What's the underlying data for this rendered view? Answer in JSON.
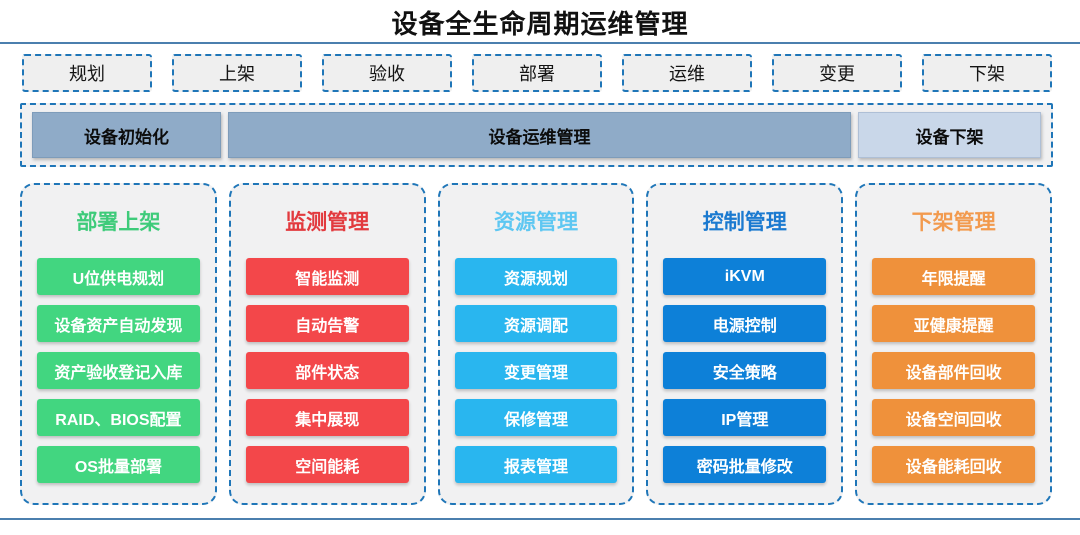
{
  "title": "设备全生命周期运维管理",
  "colors": {
    "dashed_border": "#1f76b8",
    "rule_line": "#4b7fae",
    "panel_bg": "#f1f1f2",
    "phase_dark": "#8fabc8",
    "phase_light": "#c9d7e9"
  },
  "stages": [
    "规划",
    "上架",
    "验收",
    "部署",
    "运维",
    "变更",
    "下架"
  ],
  "phase_bar": [
    {
      "label": "设备初始化"
    },
    {
      "label": "设备运维管理"
    },
    {
      "label": "设备下架"
    }
  ],
  "columns": [
    {
      "title": "部署上架",
      "title_color": "#3ecb7a",
      "color": "#42d680",
      "items": [
        "U位供电规划",
        "设备资产自动发现",
        "资产验收登记入库",
        "RAID、BIOS配置",
        "OS批量部署"
      ]
    },
    {
      "title": "监测管理",
      "title_color": "#e23a3e",
      "color": "#f3474a",
      "items": [
        "智能监测",
        "自动告警",
        "部件状态",
        "集中展现",
        "空间能耗"
      ]
    },
    {
      "title": "资源管理",
      "title_color": "#5ec7f2",
      "color": "#29b6ef",
      "items": [
        "资源规划",
        "资源调配",
        "变更管理",
        "保修管理",
        "报表管理"
      ]
    },
    {
      "title": "控制管理",
      "title_color": "#1b7ad0",
      "color": "#0d80d8",
      "items": [
        "iKVM",
        "电源控制",
        "安全策略",
        "IP管理",
        "密码批量修改"
      ]
    },
    {
      "title": "下架管理",
      "title_color": "#f29a4e",
      "color": "#ef913b",
      "items": [
        "年限提醒",
        "亚健康提醒",
        "设备部件回收",
        "设备空间回收",
        "设备能耗回收"
      ]
    }
  ]
}
